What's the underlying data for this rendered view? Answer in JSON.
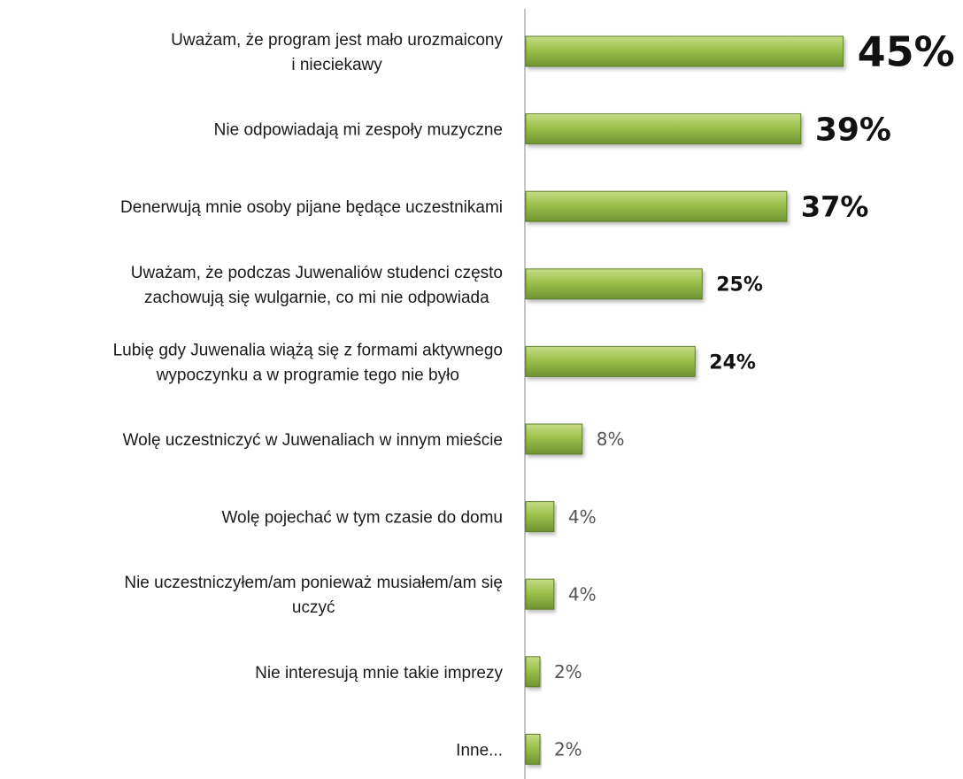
{
  "chart_data": {
    "type": "bar",
    "orientation": "horizontal",
    "title": "",
    "xlabel": "",
    "ylabel": "",
    "grid": false,
    "legend": "none",
    "xlim": [
      0,
      48
    ],
    "categories": [
      "Uważam, że program jest mało urozmaicony i nieciekawy",
      "Nie odpowiadają mi zespoły muzyczne",
      "Denerwują mnie osoby pijane będące uczestnikami",
      "Uważam, że podczas Juwenaliów studenci często zachowują się wulgarnie, co mi nie odpowiada",
      "Lubię gdy Juwenalia wiążą się z formami aktywnego wypoczynku a w programie tego nie było",
      "Wolę uczestniczyć w Juwenaliach w innym mieście",
      "Wolę pojechać w tym czasie do domu",
      "Nie uczestniczyłem/am ponieważ musiałem/am się uczyć",
      "Nie interesują mnie takie imprezy",
      "Inne..."
    ],
    "category_lines": [
      [
        "Uważam, że program jest mało urozmaicony",
        "i  nieciekawy"
      ],
      [
        "Nie odpowiadają mi zespoły muzyczne"
      ],
      [
        "Denerwują mnie osoby pijane będące uczestnikami"
      ],
      [
        "Uważam, że podczas Juwenaliów studenci często",
        "zachowują się wulgarnie, co mi nie odpowiada"
      ],
      [
        "Lubię gdy Juwenalia wiążą się z formami aktywnego",
        "wypoczynku a w programie tego nie było"
      ],
      [
        "Wolę uczestniczyć w Juwenaliach w innym mieście"
      ],
      [
        "Wolę pojechać w tym czasie do domu"
      ],
      [
        "Nie uczestniczyłem/am ponieważ musiałem/am się",
        "uczyć"
      ],
      [
        "Nie interesują mnie takie imprezy"
      ],
      [
        "Inne..."
      ]
    ],
    "values": [
      45,
      39,
      37,
      25,
      24,
      8,
      4,
      4,
      2,
      2
    ],
    "value_labels": [
      "45%",
      "39%",
      "37%",
      "25%",
      "24%",
      "8%",
      "4%",
      "4%",
      "2%",
      "2%"
    ],
    "colors": {
      "bar_top": "#c6dc86",
      "bar_mid": "#9cc14c",
      "bar_bottom": "#6f9330",
      "bar_stroke": "#5f7f2a",
      "axis": "#8a8a8a",
      "label_text": "#1a1a1a",
      "value_text_bold": "#111111",
      "value_text_light": "#555555"
    }
  }
}
